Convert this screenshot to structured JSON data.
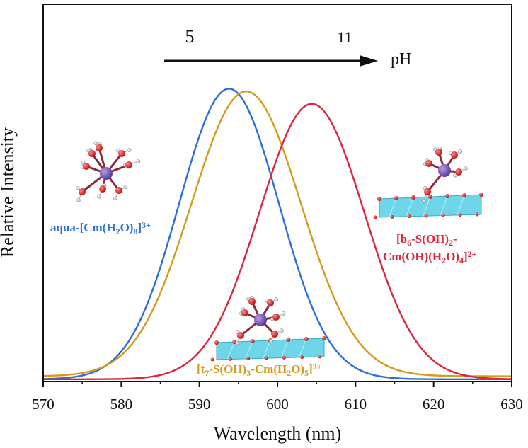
{
  "chart_data": {
    "type": "line",
    "xlabel": "Wavelength (nm)",
    "ylabel": "Relative Intensity",
    "xlim": [
      570,
      630
    ],
    "x_ticks": [
      "570",
      "580",
      "590",
      "600",
      "610",
      "620",
      "630"
    ],
    "ylim": [
      0,
      1
    ],
    "grid": false,
    "series": [
      {
        "color": "#2b6fd6",
        "center": 593.8,
        "fwhm": 15.0,
        "peak": 0.77,
        "baseline": 0.006
      },
      {
        "color": "#d49a1a",
        "center": 596.0,
        "fwhm": 16.5,
        "peak": 0.755,
        "baseline": 0.014
      },
      {
        "color": "#e0243b",
        "center": 604.4,
        "fwhm": 15.8,
        "peak": 0.73,
        "baseline": 0.006
      }
    ],
    "annotations": [
      {
        "parts": [
          {
            "t": "aqua-[Cm(H"
          },
          {
            "t": "2",
            "s": "sub"
          },
          {
            "t": "O)"
          },
          {
            "t": "8",
            "s": "sub"
          },
          {
            "t": "]"
          },
          {
            "t": "3+",
            "s": "sup"
          }
        ],
        "color": "#2b6fd6"
      },
      {
        "parts": [
          {
            "t": "[t"
          },
          {
            "t": "7",
            "s": "sub"
          },
          {
            "t": "-S(OH)"
          },
          {
            "t": "3",
            "s": "sub"
          },
          {
            "t": "-Cm(H"
          },
          {
            "t": "2",
            "s": "sub"
          },
          {
            "t": "O)"
          },
          {
            "t": "5",
            "s": "sub"
          },
          {
            "t": "]"
          },
          {
            "t": "3+",
            "s": "sup"
          }
        ],
        "color": "#d49a1a"
      },
      {
        "parts": [
          {
            "t": "[b"
          },
          {
            "t": "6",
            "s": "sub"
          },
          {
            "t": "-S(OH)"
          },
          {
            "t": "2",
            "s": "sub"
          },
          {
            "t": "-"
          }
        ],
        "color": "#e0243b"
      },
      {
        "parts": [
          {
            "t": "Cm(OH)(H"
          },
          {
            "t": "2",
            "s": "sub"
          },
          {
            "t": "O)"
          },
          {
            "t": "4",
            "s": "sub"
          },
          {
            "t": "]"
          },
          {
            "t": "2+",
            "s": "sup"
          }
        ],
        "color": "#e0243b"
      }
    ],
    "ph_arrow": {
      "start_label": "5",
      "end_label": "11",
      "unit": "pH"
    }
  }
}
